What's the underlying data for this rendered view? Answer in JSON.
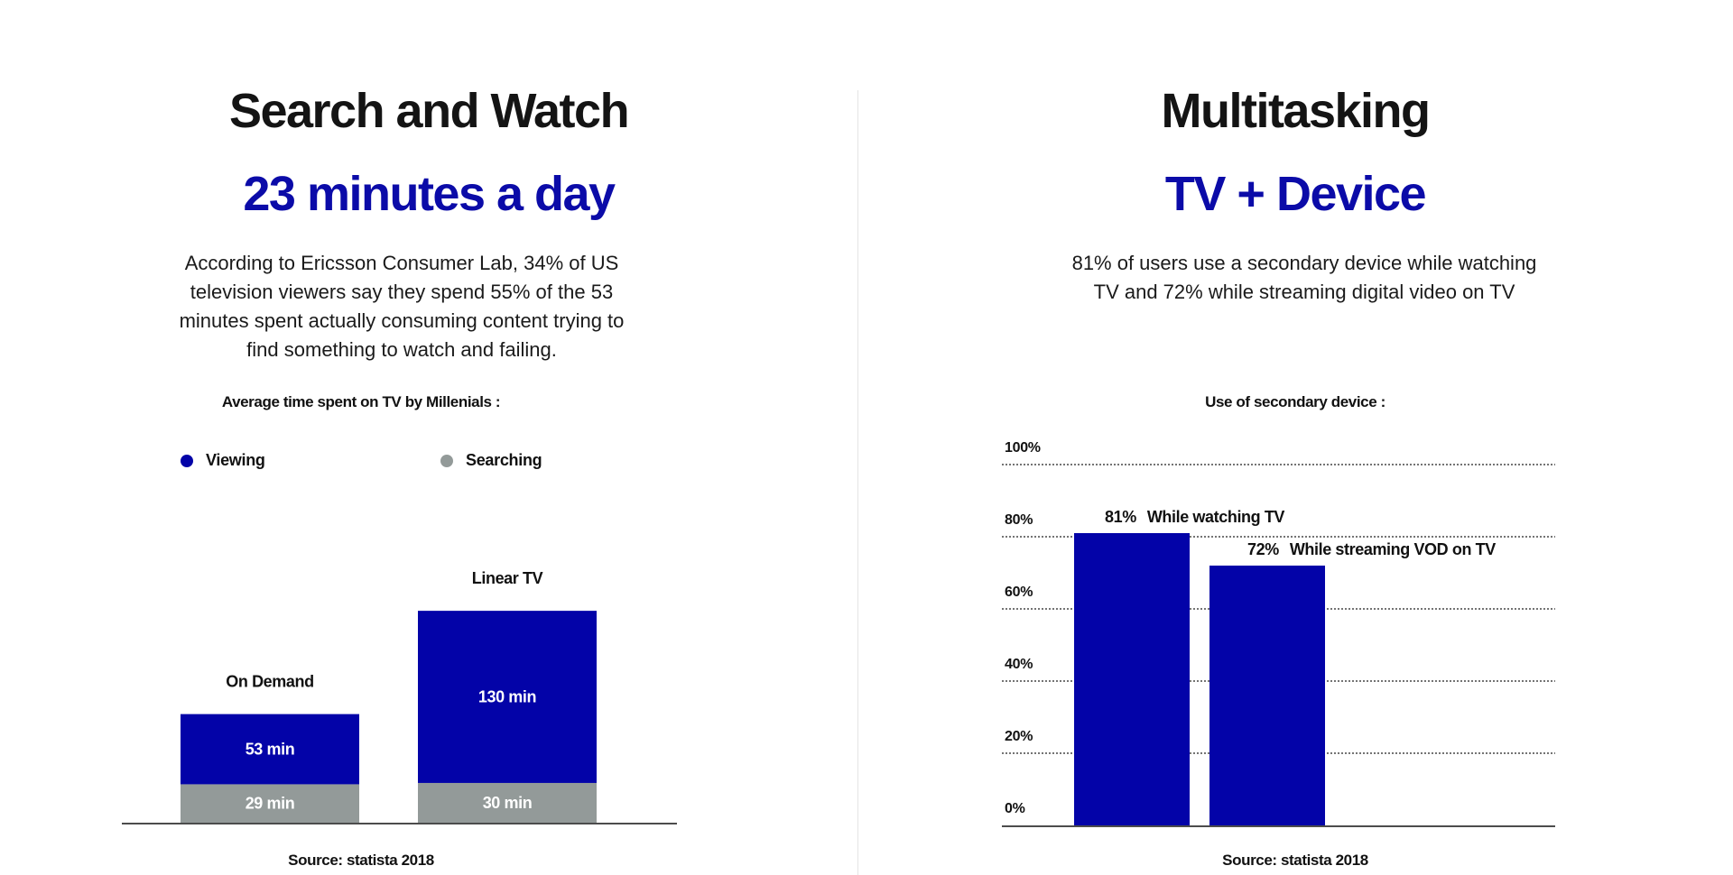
{
  "left": {
    "title": "Search and Watch",
    "headline": "23 minutes a day",
    "description_lines": [
      "According to Ericsson Consumer Lab, 34% of US",
      "television viewers say they spend 55% of the 53",
      "minutes spent actually consuming content trying to",
      "find something to watch and failing."
    ],
    "source": "Source: statista 2018"
  },
  "right": {
    "title": "Multitasking",
    "headline": "TV + Device",
    "description_lines": [
      "81% of users use a secondary device while watching",
      "TV and 72% while streaming digital video on TV"
    ],
    "source": "Source: statista 2018"
  },
  "colors": {
    "viewing": "#0303a8",
    "searching": "#939a99",
    "bar": "#0303a8",
    "accent": "#0b0ba8"
  },
  "chart_data": [
    {
      "type": "bar",
      "stacked": true,
      "title": "Average time spent on TV by Millenials :",
      "categories": [
        "On Demand",
        "Linear TV"
      ],
      "series": [
        {
          "name": "Viewing",
          "values": [
            53,
            130
          ],
          "labels": [
            "53 min",
            "130 min"
          ],
          "color": "#0303a8"
        },
        {
          "name": "Searching",
          "values": [
            29,
            30
          ],
          "labels": [
            "29 min",
            "30 min"
          ],
          "color": "#939a99"
        }
      ],
      "legend_position": "top",
      "axes_visible": false,
      "grid": false
    },
    {
      "type": "bar",
      "title": "Use of secondary device :",
      "categories": [
        "While watching TV",
        "While streaming VOD on TV"
      ],
      "values": [
        81,
        72
      ],
      "value_labels": [
        "81%",
        "72%"
      ],
      "ylim": [
        0,
        100
      ],
      "yticks": [
        0,
        20,
        40,
        60,
        80,
        100
      ],
      "ytick_labels": [
        "0%",
        "20%",
        "40%",
        "60%",
        "80%",
        "100%"
      ],
      "grid": true,
      "grid_style": "dotted",
      "color": "#0303a8"
    }
  ]
}
